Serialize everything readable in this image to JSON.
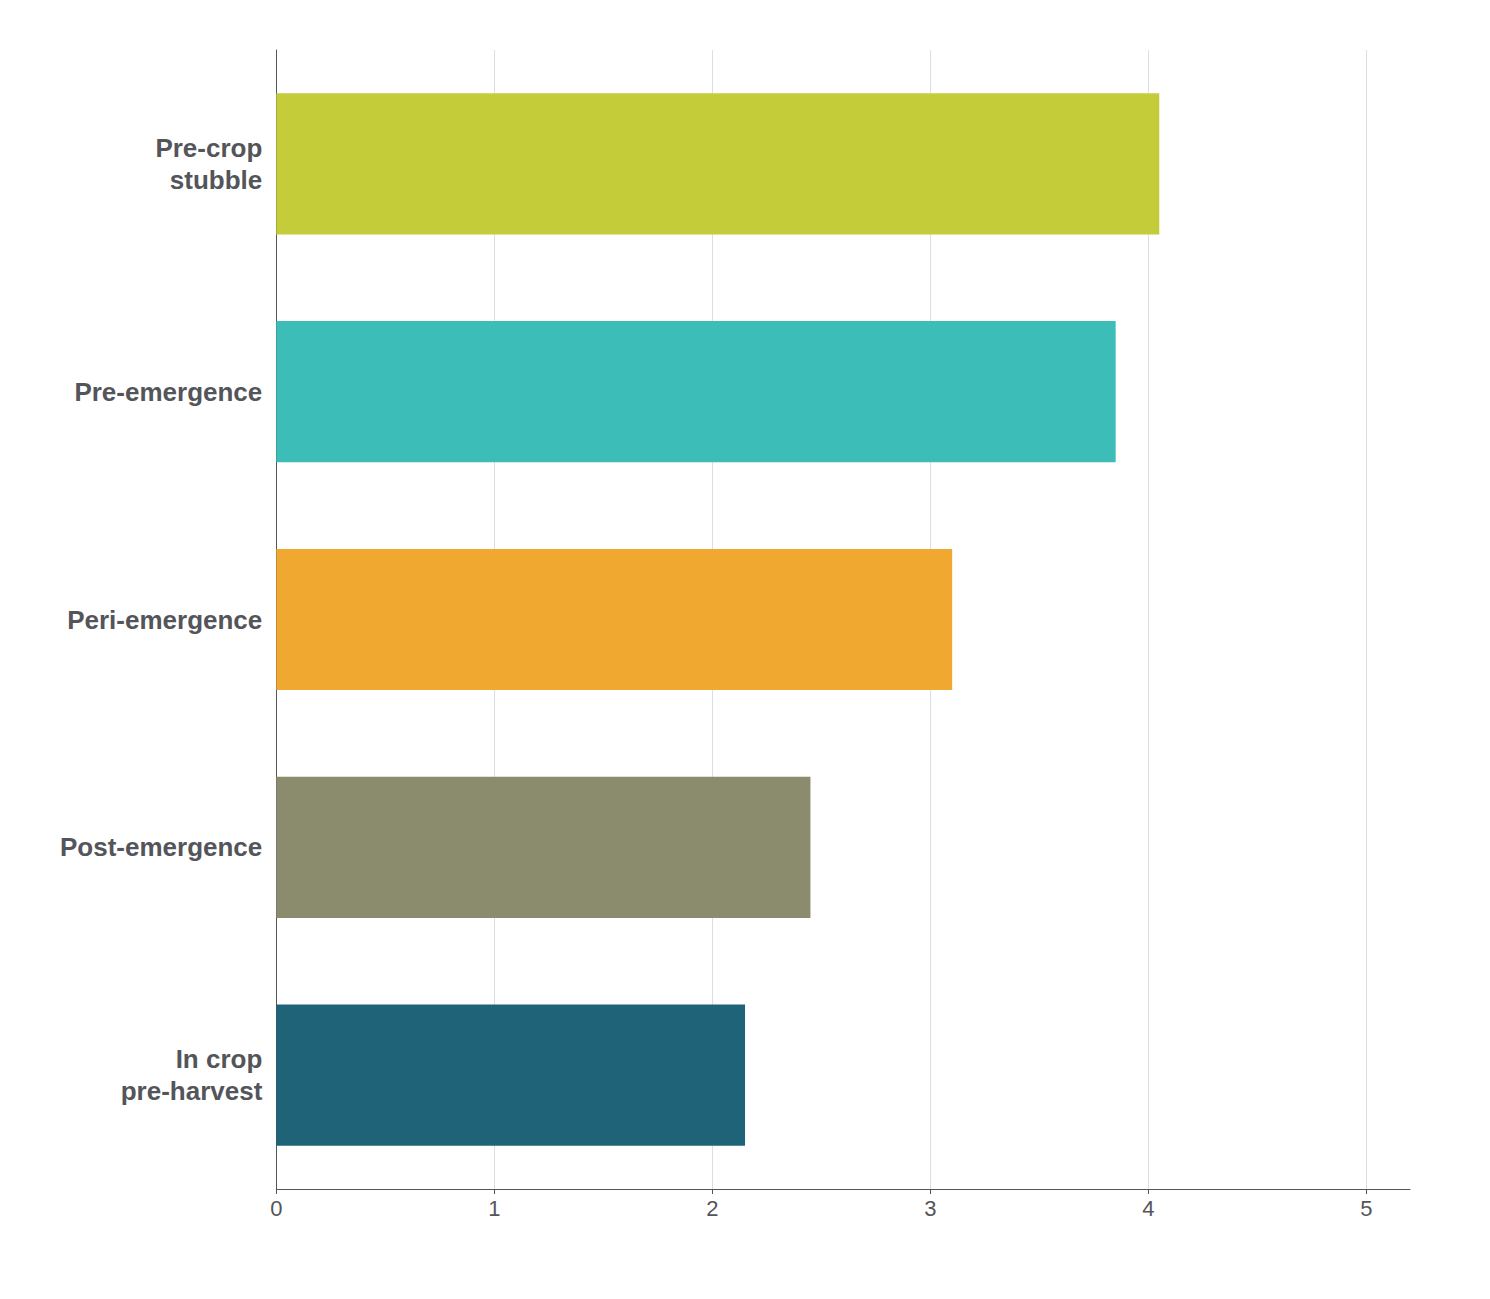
{
  "chart_data": {
    "type": "bar",
    "orientation": "horizontal",
    "categories": [
      "In crop\npre-harvest",
      "Post-emergence",
      "Peri-emergence",
      "Pre-emergence",
      "Pre-crop\nstubble"
    ],
    "values": [
      2.15,
      2.45,
      3.1,
      3.85,
      4.05
    ],
    "colors": [
      "#1f6378",
      "#8b8b6e",
      "#f0a830",
      "#3dbdb8",
      "#c5cc3a"
    ],
    "xlim": [
      0,
      5.2
    ],
    "xticks": [
      0,
      1,
      2,
      3,
      4,
      5
    ],
    "grid": true
  }
}
